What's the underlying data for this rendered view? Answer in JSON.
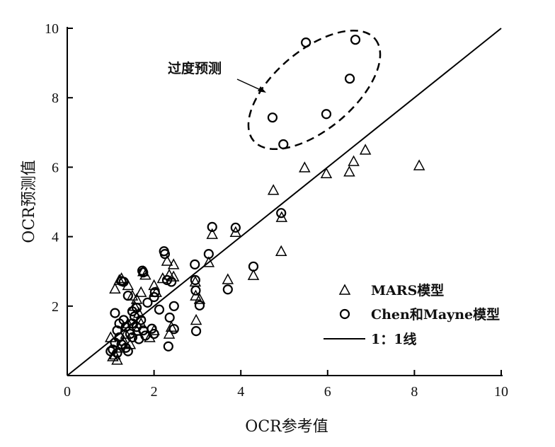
{
  "chart_data": {
    "type": "scatter",
    "title": "",
    "xlabel": "OCR参考值",
    "ylabel": "OCR预测值",
    "xlim": [
      0,
      10
    ],
    "ylim": [
      0,
      10
    ],
    "xticks": [
      "0",
      "2",
      "4",
      "6",
      "8",
      "10"
    ],
    "yticks": [
      "2",
      "4",
      "6",
      "8",
      "10"
    ],
    "grid": false,
    "legend_position": "bottom-right",
    "annotation": "过度预测",
    "series": [
      {
        "name": "MARS模型",
        "marker": "triangle",
        "points": [
          [
            6.87,
            6.5
          ],
          [
            6.6,
            6.17
          ],
          [
            6.5,
            5.87
          ],
          [
            5.97,
            5.82
          ],
          [
            5.47,
            5.99
          ],
          [
            8.11,
            6.05
          ],
          [
            4.75,
            5.34
          ],
          [
            4.94,
            4.56
          ],
          [
            4.93,
            3.58
          ],
          [
            3.88,
            4.13
          ],
          [
            3.34,
            4.07
          ],
          [
            3.26,
            3.26
          ],
          [
            4.29,
            2.89
          ],
          [
            3.7,
            2.77
          ],
          [
            2.95,
            2.7
          ],
          [
            2.96,
            2.3
          ],
          [
            2.97,
            1.6
          ],
          [
            3.05,
            2.2
          ],
          [
            2.45,
            3.2
          ],
          [
            2.3,
            3.3
          ],
          [
            2.35,
            2.9
          ],
          [
            2.45,
            2.85
          ],
          [
            2.2,
            2.8
          ],
          [
            2.0,
            2.6
          ],
          [
            2.05,
            2.4
          ],
          [
            1.8,
            2.9
          ],
          [
            1.75,
            3.0
          ],
          [
            1.7,
            2.4
          ],
          [
            1.25,
            2.8
          ],
          [
            1.2,
            2.75
          ],
          [
            1.1,
            2.5
          ],
          [
            1.4,
            2.6
          ],
          [
            1.5,
            2.3
          ],
          [
            1.6,
            2.2
          ],
          [
            1.55,
            2.0
          ],
          [
            1.65,
            1.8
          ],
          [
            2.4,
            1.4
          ],
          [
            2.35,
            1.2
          ],
          [
            2.0,
            1.3
          ],
          [
            1.9,
            1.1
          ],
          [
            1.4,
            1.5
          ],
          [
            1.35,
            1.2
          ],
          [
            1.3,
            1.0
          ],
          [
            1.2,
            0.8
          ],
          [
            1.1,
            0.6
          ],
          [
            1.05,
            0.55
          ],
          [
            1.15,
            0.45
          ],
          [
            1.45,
            0.9
          ],
          [
            1.6,
            1.3
          ],
          [
            1.7,
            1.5
          ],
          [
            1.0,
            1.1
          ]
        ]
      },
      {
        "name": "Chen和Mayne模型",
        "marker": "circle",
        "points": [
          [
            5.5,
            9.59
          ],
          [
            6.64,
            9.67
          ],
          [
            4.73,
            7.43
          ],
          [
            6.51,
            8.55
          ],
          [
            5.97,
            7.53
          ],
          [
            4.98,
            6.66
          ],
          [
            4.93,
            4.68
          ],
          [
            3.88,
            4.26
          ],
          [
            3.34,
            4.28
          ],
          [
            3.26,
            3.5
          ],
          [
            4.29,
            3.14
          ],
          [
            3.7,
            2.48
          ],
          [
            2.23,
            3.58
          ],
          [
            2.25,
            3.5
          ],
          [
            1.73,
            3.02
          ],
          [
            1.75,
            2.97
          ],
          [
            2.94,
            3.2
          ],
          [
            2.95,
            2.75
          ],
          [
            2.96,
            2.45
          ],
          [
            3.05,
            2.02
          ],
          [
            2.97,
            1.28
          ],
          [
            2.46,
            2.0
          ],
          [
            2.33,
            0.84
          ],
          [
            2.46,
            1.34
          ],
          [
            2.36,
            1.67
          ],
          [
            2.12,
            1.9
          ],
          [
            2.0,
            2.26
          ],
          [
            2.02,
            2.4
          ],
          [
            1.25,
            2.72
          ],
          [
            1.3,
            2.7
          ],
          [
            2.3,
            2.75
          ],
          [
            2.4,
            2.7
          ],
          [
            1.85,
            2.1
          ],
          [
            1.6,
            1.95
          ],
          [
            1.5,
            1.85
          ],
          [
            1.1,
            1.8
          ],
          [
            1.4,
            2.3
          ],
          [
            1.2,
            1.5
          ],
          [
            1.15,
            1.3
          ],
          [
            1.3,
            1.6
          ],
          [
            1.35,
            1.4
          ],
          [
            1.45,
            1.2
          ],
          [
            1.5,
            1.1
          ],
          [
            1.6,
            1.4
          ],
          [
            1.7,
            1.6
          ],
          [
            1.75,
            1.3
          ],
          [
            1.8,
            1.15
          ],
          [
            1.65,
            1.05
          ],
          [
            1.55,
            1.7
          ],
          [
            1.05,
            0.75
          ],
          [
            1.1,
            0.95
          ],
          [
            1.2,
            1.1
          ],
          [
            1.25,
            0.9
          ],
          [
            1.35,
            0.8
          ],
          [
            1.4,
            0.7
          ],
          [
            1.0,
            0.7
          ],
          [
            1.15,
            0.65
          ],
          [
            2.0,
            1.2
          ],
          [
            1.95,
            1.35
          ],
          [
            1.5,
            1.5
          ]
        ]
      },
      {
        "name": "1：1线",
        "marker": "line",
        "points": [
          [
            0,
            0
          ],
          [
            10,
            10
          ]
        ]
      }
    ]
  }
}
